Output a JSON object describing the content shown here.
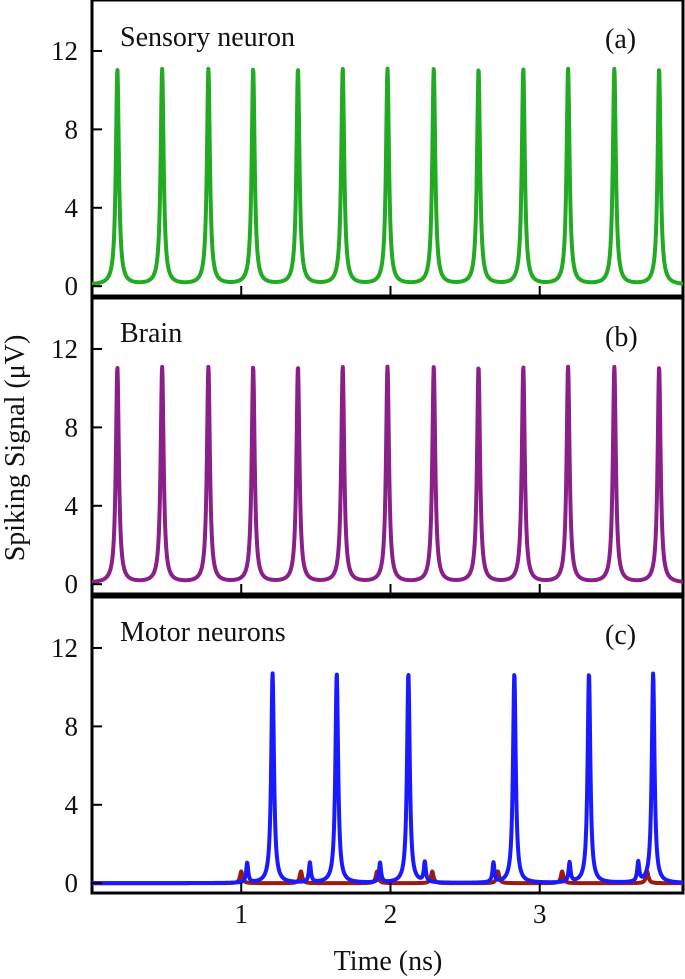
{
  "colors": {
    "green": "#22aa22",
    "purple": "#8a1f8a",
    "blue": "#1a1aff",
    "darkred": "#9b1b10",
    "frame": "#000000"
  },
  "chart_data": {
    "type": "line",
    "xlabel": "Time (ns)",
    "ylabel": "Spiking Signal (μV)",
    "xlim": [
      0,
      3.96
    ],
    "ylim": [
      -0.5,
      14.6
    ],
    "xticks": [
      "1",
      "2",
      "3"
    ],
    "yticks": [
      "0",
      "4",
      "8",
      "12"
    ],
    "grid": false,
    "panels": [
      {
        "title": "Sensory neuron",
        "tag": "(a)",
        "series": [
          {
            "color": "green",
            "peak": 11.0,
            "width": 0.012,
            "baseline": 0.05,
            "spikes": [
              0.17,
              0.47,
              0.78,
              1.08,
              1.38,
              1.68,
              1.98,
              2.29,
              2.59,
              2.89,
              3.19,
              3.5,
              3.8
            ]
          }
        ]
      },
      {
        "title": "Brain",
        "tag": "(b)",
        "series": [
          {
            "color": "purple",
            "peak": 11.0,
            "width": 0.012,
            "baseline": 0.05,
            "spikes": [
              0.17,
              0.47,
              0.78,
              1.08,
              1.38,
              1.68,
              1.98,
              2.29,
              2.59,
              2.89,
              3.19,
              3.5,
              3.8
            ]
          }
        ]
      },
      {
        "title": "Motor neurons",
        "tag": "(c)",
        "series": [
          {
            "color": "darkred",
            "peak": 0.6,
            "width": 0.01,
            "baseline": 0.0,
            "spikes": [
              1.0,
              1.4,
              1.91,
              2.28,
              2.72,
              3.15,
              3.72
            ]
          },
          {
            "color": "blue",
            "peak": 10.7,
            "width": 0.011,
            "baseline": 0.0,
            "spikes": [
              1.21,
              1.64,
              2.12,
              2.83,
              3.33,
              3.76
            ],
            "small_spikes": [
              1.04,
              1.46,
              1.93,
              2.23,
              2.69,
              3.2,
              3.66
            ],
            "small_peak": 1.0
          }
        ]
      }
    ]
  }
}
